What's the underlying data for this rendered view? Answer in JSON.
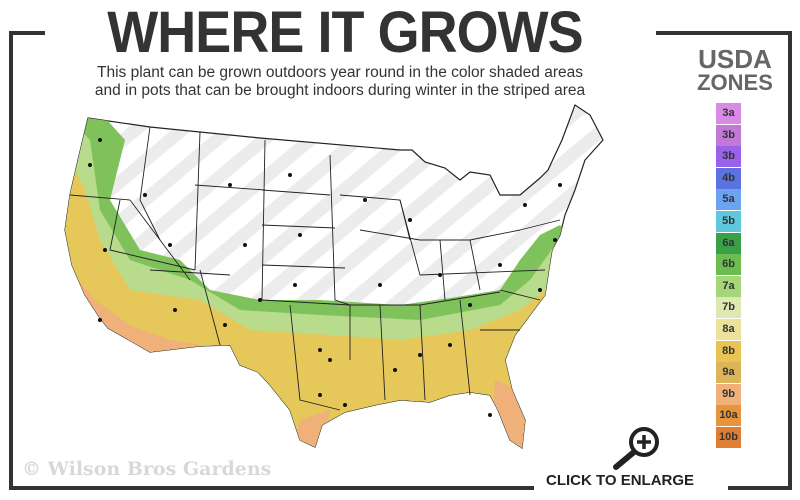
{
  "header": {
    "title": "WHERE IT GROWS",
    "subtitle_line1": "This plant can be grown outdoors year round in the color shaded areas",
    "subtitle_line2": "and in pots that can be brought indoors during winter in the striped area"
  },
  "legend": {
    "title_line1": "USDA",
    "title_line2": "ZONES",
    "zones": [
      {
        "label": "3a",
        "color": "#d98ae6"
      },
      {
        "label": "3b",
        "color": "#c178d6"
      },
      {
        "label": "3b",
        "color": "#9a62e8"
      },
      {
        "label": "4b",
        "color": "#5c72e0"
      },
      {
        "label": "5a",
        "color": "#6aa3f0"
      },
      {
        "label": "5b",
        "color": "#5ec8dc"
      },
      {
        "label": "6a",
        "color": "#3aa048"
      },
      {
        "label": "6b",
        "color": "#6cbc50"
      },
      {
        "label": "7a",
        "color": "#a6d67a"
      },
      {
        "label": "7b",
        "color": "#dfe8b0"
      },
      {
        "label": "8a",
        "color": "#ece29c"
      },
      {
        "label": "8b",
        "color": "#e8c455"
      },
      {
        "label": "9a",
        "color": "#dcb45a"
      },
      {
        "label": "9b",
        "color": "#efb07a"
      },
      {
        "label": "10a",
        "color": "#e8943a"
      },
      {
        "label": "10b",
        "color": "#e07f34"
      }
    ]
  },
  "map": {
    "growing_colors": [
      "#6cbc50",
      "#a6d67a",
      "#e8c455",
      "#efb07a"
    ],
    "striped_color": "#ececec"
  },
  "footer": {
    "copyright": "© Wilson Bros Gardens",
    "enlarge_label": "CLICK TO ENLARGE",
    "enlarge_icon": "magnifier-plus-icon"
  }
}
